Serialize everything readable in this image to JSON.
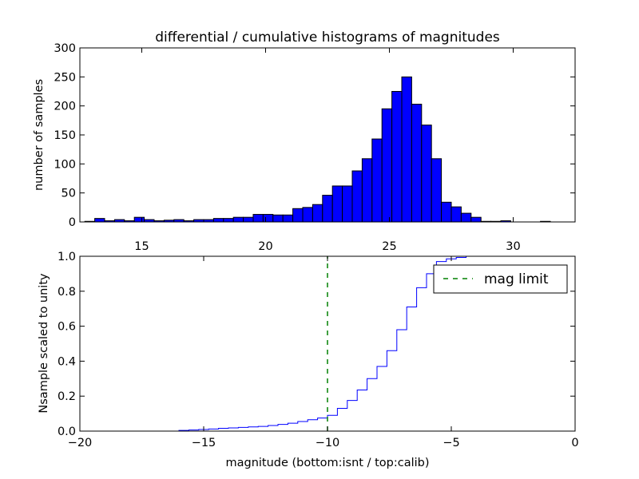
{
  "chart_data": [
    {
      "type": "bar",
      "title": "differential / cumulative histograms of magnitudes",
      "ylabel": "number of samples",
      "xlim": [
        12.5,
        32.5
      ],
      "ylim": [
        0,
        300
      ],
      "xticks": [
        15,
        20,
        25,
        30
      ],
      "yticks": [
        0,
        50,
        100,
        150,
        200,
        250,
        300
      ],
      "color": "#0000ff",
      "bin_width": 0.4,
      "bins": [
        {
          "x": 12.9,
          "y": 1
        },
        {
          "x": 13.3,
          "y": 6
        },
        {
          "x": 13.7,
          "y": 2
        },
        {
          "x": 14.1,
          "y": 4
        },
        {
          "x": 14.5,
          "y": 2
        },
        {
          "x": 14.9,
          "y": 8
        },
        {
          "x": 15.3,
          "y": 4
        },
        {
          "x": 15.7,
          "y": 2
        },
        {
          "x": 16.1,
          "y": 3
        },
        {
          "x": 16.5,
          "y": 4
        },
        {
          "x": 16.9,
          "y": 2
        },
        {
          "x": 17.3,
          "y": 4
        },
        {
          "x": 17.7,
          "y": 4
        },
        {
          "x": 18.1,
          "y": 6
        },
        {
          "x": 18.5,
          "y": 6
        },
        {
          "x": 18.9,
          "y": 8
        },
        {
          "x": 19.3,
          "y": 8
        },
        {
          "x": 19.7,
          "y": 13
        },
        {
          "x": 20.1,
          "y": 13
        },
        {
          "x": 20.5,
          "y": 12
        },
        {
          "x": 20.9,
          "y": 12
        },
        {
          "x": 21.3,
          "y": 23
        },
        {
          "x": 21.7,
          "y": 25
        },
        {
          "x": 22.1,
          "y": 30
        },
        {
          "x": 22.5,
          "y": 46
        },
        {
          "x": 22.9,
          "y": 62
        },
        {
          "x": 23.3,
          "y": 62
        },
        {
          "x": 23.7,
          "y": 88
        },
        {
          "x": 24.1,
          "y": 109
        },
        {
          "x": 24.5,
          "y": 143
        },
        {
          "x": 24.9,
          "y": 195
        },
        {
          "x": 25.3,
          "y": 225
        },
        {
          "x": 25.7,
          "y": 250
        },
        {
          "x": 26.1,
          "y": 203
        },
        {
          "x": 26.5,
          "y": 167
        },
        {
          "x": 26.9,
          "y": 109
        },
        {
          "x": 27.3,
          "y": 34
        },
        {
          "x": 27.7,
          "y": 26
        },
        {
          "x": 28.1,
          "y": 15
        },
        {
          "x": 28.5,
          "y": 8
        },
        {
          "x": 28.9,
          "y": 1
        },
        {
          "x": 29.3,
          "y": 1
        },
        {
          "x": 29.7,
          "y": 2
        },
        {
          "x": 30.1,
          "y": 0
        },
        {
          "x": 30.5,
          "y": 0
        },
        {
          "x": 30.9,
          "y": 0
        },
        {
          "x": 31.3,
          "y": 1
        }
      ]
    },
    {
      "type": "line",
      "xlabel": "magnitude (bottom:isnt / top:calib)",
      "ylabel": "Nsample scaled to unity",
      "xlim": [
        -20,
        0
      ],
      "ylim": [
        0,
        1.0
      ],
      "xticks": [
        -20,
        -15,
        -10,
        -5,
        0
      ],
      "yticks": [
        0.0,
        0.2,
        0.4,
        0.6,
        0.8,
        1.0
      ],
      "series": [
        {
          "type": "step",
          "color": "#0000ff",
          "x": [
            -19.6,
            -16.0,
            -15.6,
            -15.2,
            -14.8,
            -14.4,
            -14.0,
            -13.6,
            -13.2,
            -12.8,
            -12.4,
            -12.0,
            -11.6,
            -11.2,
            -10.8,
            -10.4,
            -10.0,
            -9.6,
            -9.2,
            -8.8,
            -8.4,
            -8.0,
            -7.6,
            -7.2,
            -6.8,
            -6.4,
            -6.0,
            -5.6
          ],
          "y": [
            0.0,
            0.004,
            0.006,
            0.009,
            0.012,
            0.016,
            0.018,
            0.021,
            0.024,
            0.027,
            0.032,
            0.038,
            0.045,
            0.055,
            0.065,
            0.075,
            0.09,
            0.13,
            0.175,
            0.235,
            0.3,
            0.37,
            0.46,
            0.58,
            0.71,
            0.82,
            0.9,
            0.95
          ]
        },
        {
          "name": "mag limit",
          "type": "vline",
          "color": "#008000",
          "dash": "dashed",
          "x": -10.0
        }
      ],
      "tail": [
        {
          "x": -5.6,
          "y": 0.97
        },
        {
          "x": -5.2,
          "y": 0.985
        },
        {
          "x": -4.8,
          "y": 0.993
        },
        {
          "x": -4.4,
          "y": 1.0
        }
      ],
      "edge_x": 0,
      "legend_position": "upper right"
    }
  ]
}
